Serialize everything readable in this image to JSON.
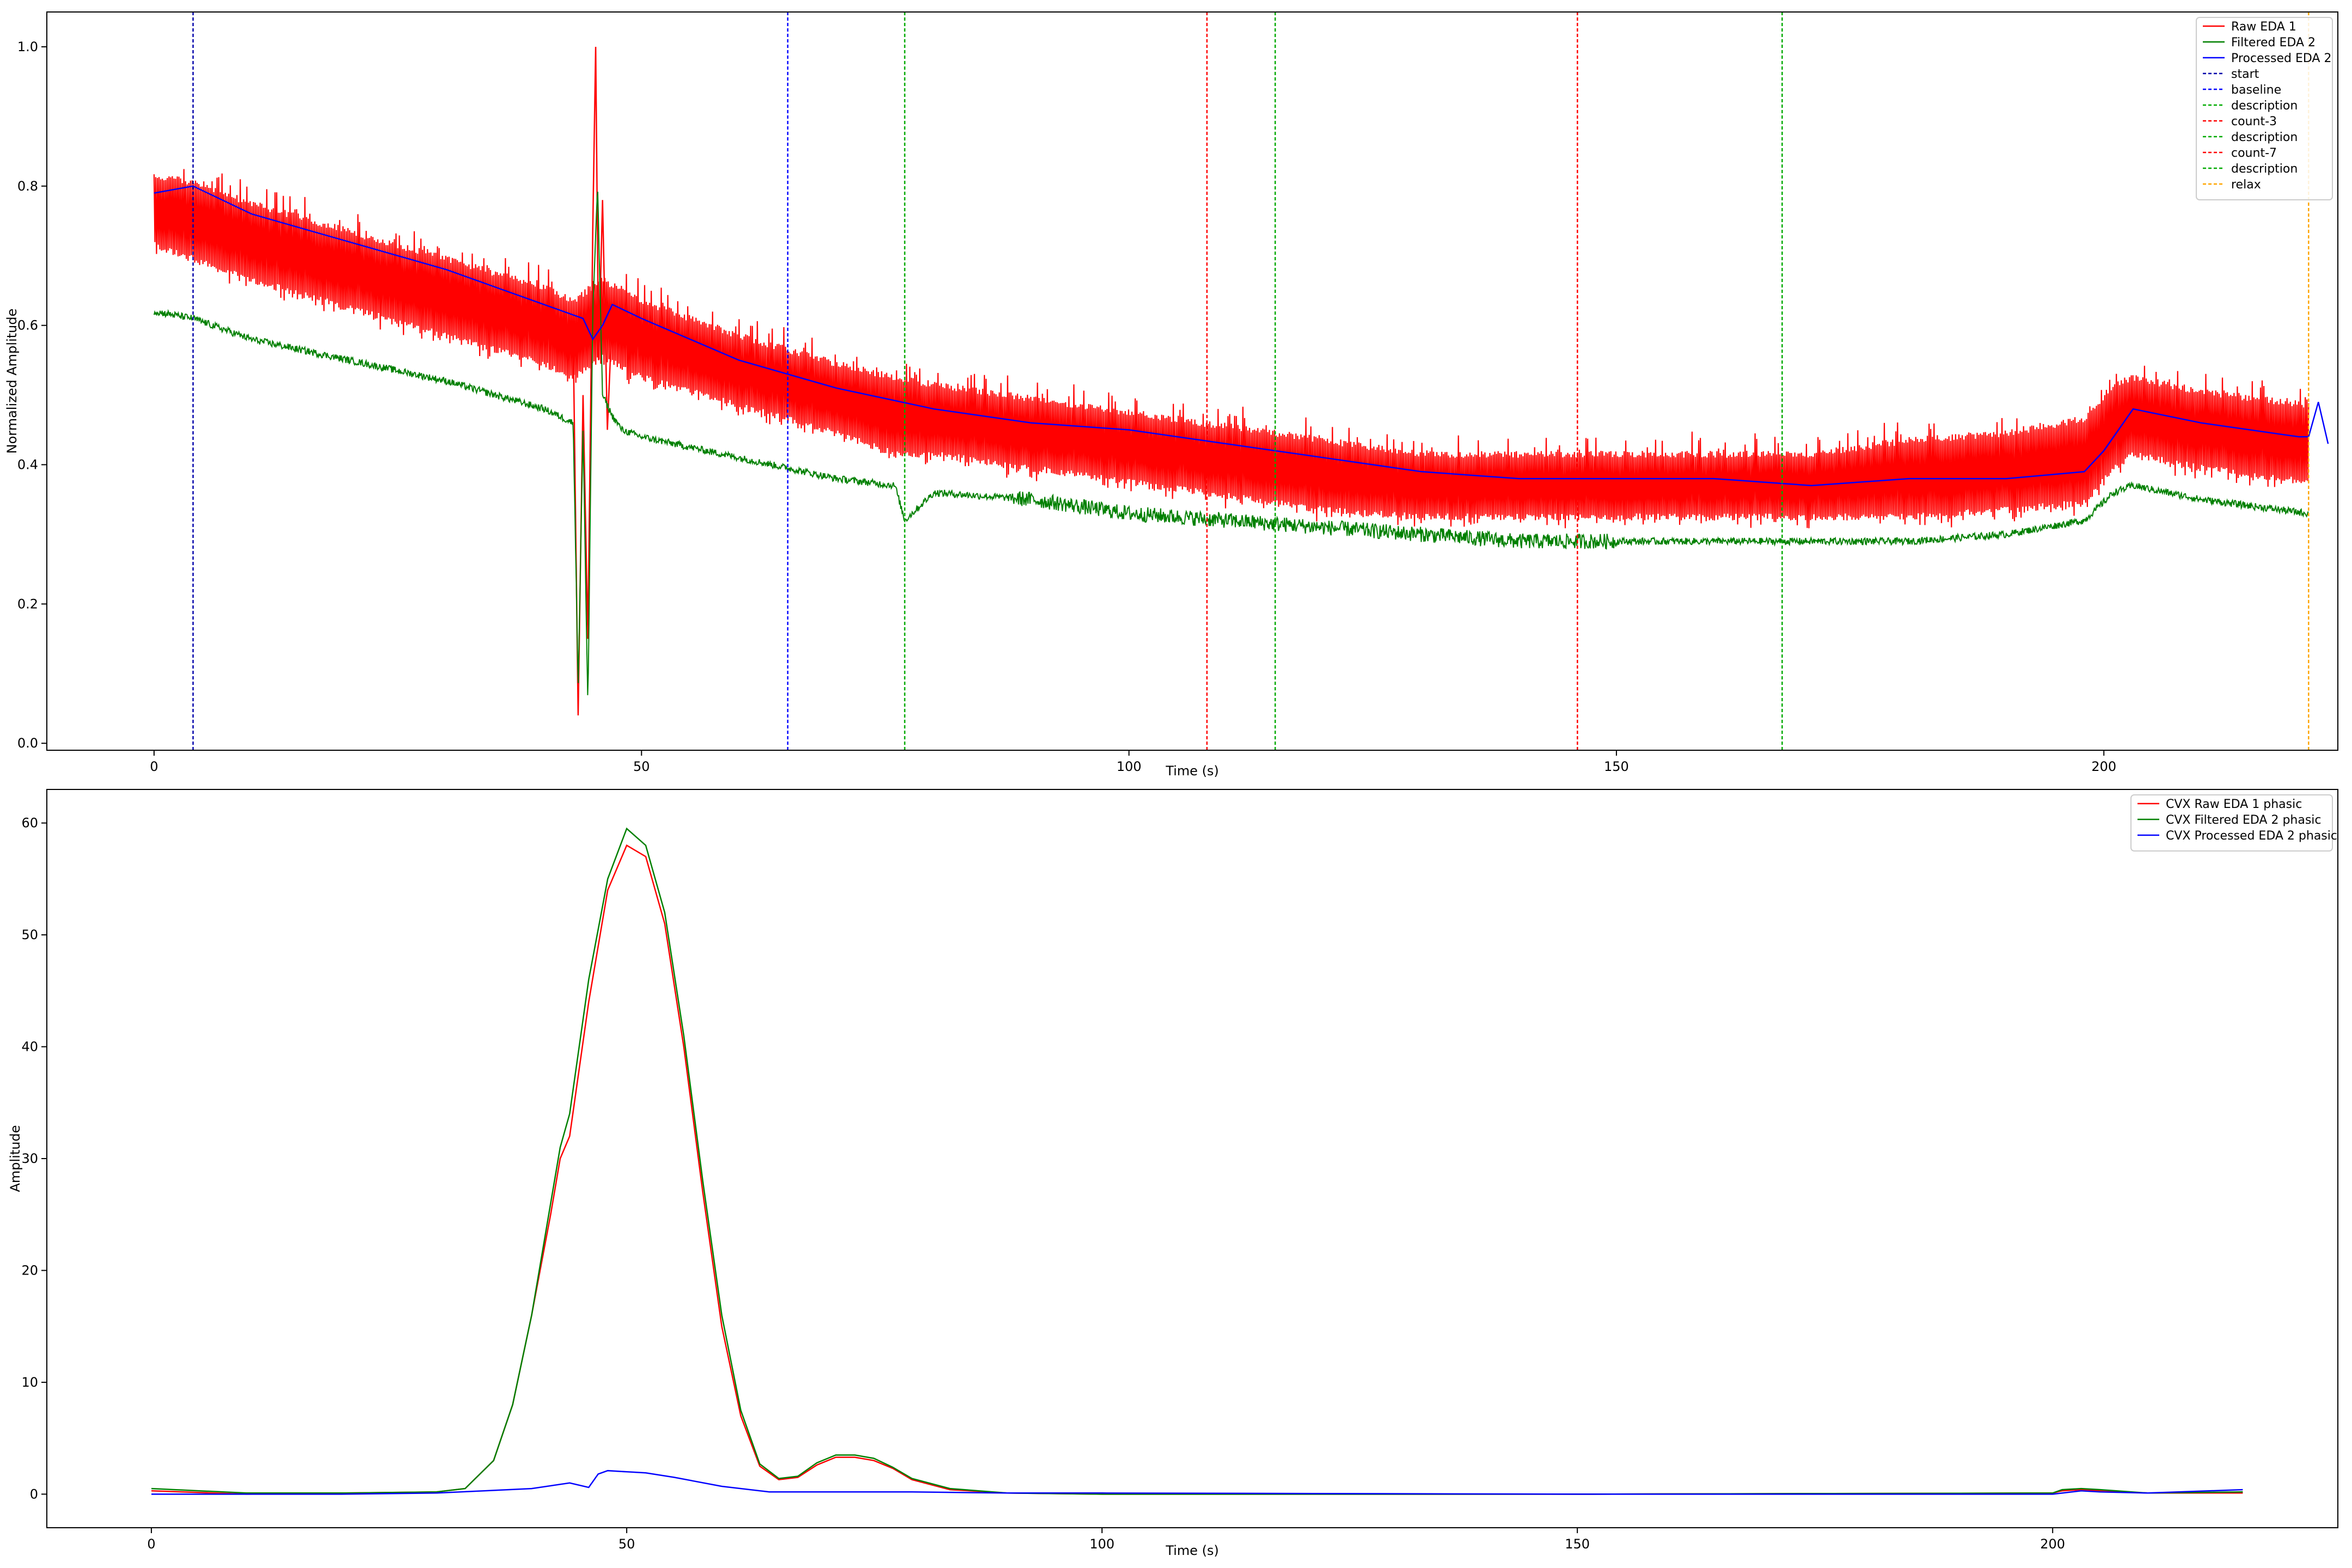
{
  "chart_data": [
    {
      "type": "line",
      "xlabel": "Time (s)",
      "ylabel": "Normalized Amplitude",
      "xlim": [
        -11,
        224
      ],
      "ylim": [
        -0.01,
        1.05
      ],
      "xticks": [
        {
          "value": 0,
          "label": "0"
        },
        {
          "value": 50,
          "label": "50"
        },
        {
          "value": 100,
          "label": "100"
        },
        {
          "value": 150,
          "label": "150"
        },
        {
          "value": 200,
          "label": "200"
        }
      ],
      "yticks": [
        {
          "value": 0.0,
          "label": "0.0"
        },
        {
          "value": 0.2,
          "label": "0.2"
        },
        {
          "value": 0.4,
          "label": "0.4"
        },
        {
          "value": 0.6,
          "label": "0.6"
        },
        {
          "value": 0.8,
          "label": "0.8"
        },
        {
          "value": 1.0,
          "label": "1.0"
        }
      ],
      "legend_position": "top-right",
      "series": [
        {
          "name": "Raw EDA 1",
          "color": "#ff0000",
          "style": "band",
          "x": [
            0,
            4,
            10,
            20,
            30,
            40,
            43,
            46,
            50,
            60,
            70,
            76,
            80,
            90,
            100,
            110,
            120,
            130,
            140,
            150,
            160,
            170,
            180,
            190,
            198,
            201,
            203,
            210,
            221
          ],
          "upper": [
            0.82,
            0.81,
            0.78,
            0.74,
            0.7,
            0.66,
            0.64,
            0.67,
            0.64,
            0.59,
            0.55,
            0.53,
            0.52,
            0.5,
            0.48,
            0.46,
            0.44,
            0.42,
            0.42,
            0.42,
            0.42,
            0.42,
            0.44,
            0.45,
            0.47,
            0.52,
            0.53,
            0.51,
            0.49
          ],
          "lower": [
            0.71,
            0.69,
            0.66,
            0.62,
            0.58,
            0.54,
            0.52,
            0.55,
            0.52,
            0.48,
            0.44,
            0.41,
            0.41,
            0.39,
            0.37,
            0.35,
            0.33,
            0.32,
            0.32,
            0.32,
            0.32,
            0.32,
            0.32,
            0.33,
            0.34,
            0.39,
            0.41,
            0.39,
            0.37
          ],
          "artifact_x": [
            43.0,
            43.5,
            44.0,
            44.5,
            45.0,
            45.3,
            45.6,
            46.0,
            46.5,
            47.0
          ],
          "artifact_y": [
            0.58,
            0.04,
            0.5,
            0.15,
            0.74,
            1.0,
            0.55,
            0.78,
            0.45,
            0.62
          ]
        },
        {
          "name": "Filtered EDA 2",
          "color": "#008000",
          "style": "noisy",
          "x": [
            0,
            4,
            10,
            20,
            30,
            40,
            43,
            43.5,
            44,
            44.5,
            45,
            45.5,
            46,
            47,
            48,
            50,
            60,
            70,
            76,
            77,
            80,
            90,
            100,
            110,
            120,
            130,
            140,
            150,
            160,
            170,
            180,
            190,
            198,
            201,
            203,
            210,
            221
          ],
          "y": [
            0.62,
            0.61,
            0.58,
            0.55,
            0.52,
            0.48,
            0.46,
            0.08,
            0.45,
            0.05,
            0.62,
            0.8,
            0.5,
            0.47,
            0.45,
            0.44,
            0.41,
            0.38,
            0.37,
            0.32,
            0.36,
            0.35,
            0.33,
            0.32,
            0.31,
            0.3,
            0.29,
            0.29,
            0.29,
            0.29,
            0.29,
            0.3,
            0.32,
            0.36,
            0.37,
            0.35,
            0.33
          ]
        },
        {
          "name": "Processed EDA 2",
          "color": "#0000ff",
          "style": "line",
          "x": [
            0,
            4,
            10,
            20,
            30,
            40,
            44,
            45,
            46,
            47,
            50,
            60,
            70,
            80,
            90,
            100,
            110,
            120,
            130,
            140,
            150,
            160,
            170,
            180,
            190,
            198,
            200,
            203,
            210,
            220,
            221,
            222,
            223
          ],
          "y": [
            0.79,
            0.8,
            0.76,
            0.72,
            0.68,
            0.63,
            0.61,
            0.58,
            0.6,
            0.63,
            0.61,
            0.55,
            0.51,
            0.48,
            0.46,
            0.45,
            0.43,
            0.41,
            0.39,
            0.38,
            0.38,
            0.38,
            0.37,
            0.38,
            0.38,
            0.39,
            0.42,
            0.48,
            0.46,
            0.44,
            0.44,
            0.49,
            0.43
          ]
        },
        {
          "name": "start",
          "color": "#0000aa",
          "style": "vline",
          "x": 4
        },
        {
          "name": "baseline",
          "color": "#0000ff",
          "style": "vline",
          "x": 65
        },
        {
          "name": "description",
          "color": "#00aa00",
          "style": "vline",
          "x": 77
        },
        {
          "name": "count-3",
          "color": "#ff0000",
          "style": "vline",
          "x": 108
        },
        {
          "name": "description",
          "color": "#00aa00",
          "style": "vline",
          "x": 115
        },
        {
          "name": "count-7",
          "color": "#ff0000",
          "style": "vline",
          "x": 146
        },
        {
          "name": "description",
          "color": "#00aa00",
          "style": "vline",
          "x": 167
        },
        {
          "name": "relax",
          "color": "#ffa500",
          "style": "vline",
          "x": 221
        }
      ]
    },
    {
      "type": "line",
      "xlabel": "Time (s)",
      "ylabel": "Amplitude",
      "xlim": [
        -11,
        230
      ],
      "ylim": [
        -3,
        63
      ],
      "xticks": [
        {
          "value": 0,
          "label": "0"
        },
        {
          "value": 50,
          "label": "50"
        },
        {
          "value": 100,
          "label": "100"
        },
        {
          "value": 150,
          "label": "150"
        },
        {
          "value": 200,
          "label": "200"
        }
      ],
      "yticks": [
        {
          "value": 0,
          "label": "0"
        },
        {
          "value": 10,
          "label": "10"
        },
        {
          "value": 20,
          "label": "20"
        },
        {
          "value": 30,
          "label": "30"
        },
        {
          "value": 40,
          "label": "40"
        },
        {
          "value": 50,
          "label": "50"
        },
        {
          "value": 60,
          "label": "60"
        }
      ],
      "legend_position": "top-right",
      "series": [
        {
          "name": "CVX Raw EDA 1 phasic",
          "color": "#ff0000",
          "style": "line",
          "x": [
            0,
            10,
            20,
            30,
            33,
            36,
            38,
            40,
            42,
            43,
            44,
            45,
            46,
            48,
            50,
            52,
            54,
            56,
            58,
            60,
            62,
            64,
            66,
            68,
            70,
            72,
            74,
            76,
            78,
            80,
            84,
            90,
            100,
            150,
            200,
            201,
            203,
            205,
            210,
            220
          ],
          "y": [
            0.3,
            0.0,
            0.1,
            0.2,
            0.5,
            3,
            8,
            16,
            25,
            30,
            32,
            38,
            44,
            54,
            58,
            57,
            51,
            40,
            27,
            15,
            7,
            2.5,
            1.3,
            1.5,
            2.6,
            3.3,
            3.3,
            3.0,
            2.3,
            1.3,
            0.4,
            0.1,
            0.0,
            0.0,
            0.1,
            0.3,
            0.4,
            0.3,
            0.1,
            0.1
          ]
        },
        {
          "name": "CVX Filtered EDA 2 phasic",
          "color": "#008000",
          "style": "line",
          "x": [
            0,
            10,
            20,
            30,
            33,
            36,
            38,
            40,
            42,
            43,
            44,
            45,
            46,
            48,
            50,
            52,
            54,
            56,
            58,
            60,
            62,
            64,
            66,
            68,
            70,
            72,
            74,
            76,
            78,
            80,
            84,
            90,
            100,
            150,
            200,
            201,
            203,
            205,
            210,
            220
          ],
          "y": [
            0.5,
            0.1,
            0.1,
            0.2,
            0.5,
            3,
            8,
            16,
            26,
            31,
            34,
            40,
            46,
            55,
            59.5,
            58,
            52,
            41,
            28,
            16,
            7.5,
            2.7,
            1.4,
            1.6,
            2.8,
            3.5,
            3.5,
            3.2,
            2.4,
            1.4,
            0.5,
            0.1,
            0.0,
            0.0,
            0.1,
            0.4,
            0.5,
            0.4,
            0.1,
            0.2
          ]
        },
        {
          "name": "CVX Processed EDA 2 phasic",
          "color": "#0000ff",
          "style": "line",
          "x": [
            0,
            5,
            10,
            20,
            30,
            35,
            40,
            44,
            46,
            47,
            48,
            50,
            52,
            55,
            60,
            65,
            70,
            80,
            90,
            100,
            150,
            200,
            203,
            205,
            210,
            220
          ],
          "y": [
            0.0,
            0.0,
            0.0,
            0.0,
            0.1,
            0.3,
            0.5,
            1.0,
            0.6,
            1.8,
            2.1,
            2.0,
            1.9,
            1.5,
            0.7,
            0.2,
            0.2,
            0.2,
            0.1,
            0.1,
            0.0,
            0.0,
            0.3,
            0.2,
            0.1,
            0.4
          ]
        }
      ]
    }
  ]
}
